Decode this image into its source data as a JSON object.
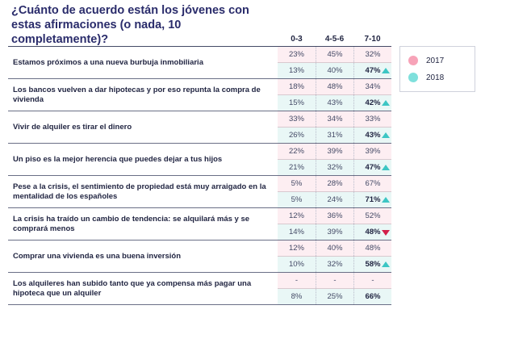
{
  "chart_data": {
    "type": "table",
    "title": "¿Cuánto de acuerdo están los jóvenes con estas afirmaciones (o nada, 10 completamente)?",
    "columns": [
      "0-3",
      "4-5-6",
      "7-10"
    ],
    "legend": [
      {
        "label": "2017",
        "color": "#f7a3b8"
      },
      {
        "label": "2018",
        "color": "#7fe0dc"
      }
    ],
    "rows": [
      {
        "statement": "Estamos próximos a una nueva burbuja inmobiliaria",
        "y2017": [
          "23%",
          "45%",
          "32%"
        ],
        "y2018": [
          "13%",
          "40%",
          "47%"
        ],
        "trend": "up"
      },
      {
        "statement": "Los bancos vuelven a dar hipotecas y por eso repunta la compra de vivienda",
        "y2017": [
          "18%",
          "48%",
          "34%"
        ],
        "y2018": [
          "15%",
          "43%",
          "42%"
        ],
        "trend": "up"
      },
      {
        "statement": "Vivir de alquiler es tirar el dinero",
        "y2017": [
          "33%",
          "34%",
          "33%"
        ],
        "y2018": [
          "26%",
          "31%",
          "43%"
        ],
        "trend": "up"
      },
      {
        "statement": "Un piso es la mejor herencia que puedes dejar a tus hijos",
        "y2017": [
          "22%",
          "39%",
          "39%"
        ],
        "y2018": [
          "21%",
          "32%",
          "47%"
        ],
        "trend": "up"
      },
      {
        "statement": "Pese a la crisis, el sentimiento de propiedad está muy arraigado en la mentalidad de los españoles",
        "y2017": [
          "5%",
          "28%",
          "67%"
        ],
        "y2018": [
          "5%",
          "24%",
          "71%"
        ],
        "trend": "up"
      },
      {
        "statement": "La crisis ha traído un cambio de tendencia: se alquilará más y se comprará menos",
        "y2017": [
          "12%",
          "36%",
          "52%"
        ],
        "y2018": [
          "14%",
          "39%",
          "48%"
        ],
        "trend": "down"
      },
      {
        "statement": "Comprar una vivienda es una buena inversión",
        "y2017": [
          "12%",
          "40%",
          "48%"
        ],
        "y2018": [
          "10%",
          "32%",
          "58%"
        ],
        "trend": "up"
      },
      {
        "statement": "Los alquileres han subido tanto que ya compensa más pagar una hipoteca que un alquiler",
        "y2017": [
          "-",
          "-",
          "-"
        ],
        "y2018": [
          "8%",
          "25%",
          "66%"
        ],
        "trend": "none"
      }
    ]
  }
}
